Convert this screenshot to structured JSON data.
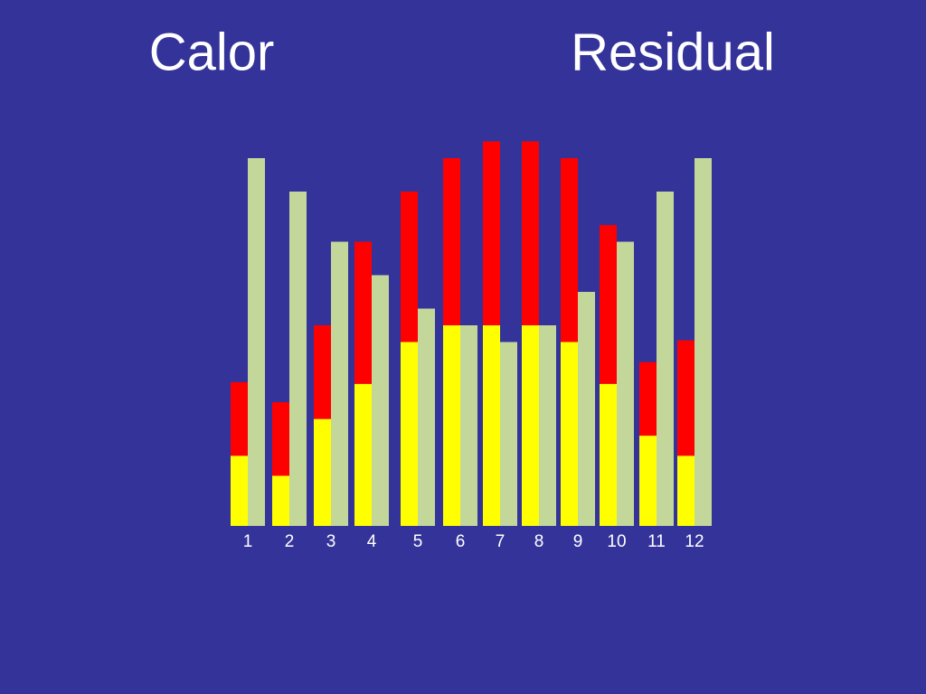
{
  "chart_data": {
    "type": "stacked-bar",
    "title_parts": [
      "Calor",
      "Residual"
    ],
    "categories": [
      "1",
      "2",
      "3",
      "4",
      "5",
      "6",
      "7",
      "8",
      "9",
      "10",
      "11",
      "12"
    ],
    "series": [
      {
        "color": "#ffff00",
        "stack": "a",
        "values": [
          4.2,
          3.0,
          6.4,
          8.5,
          11.0,
          12.0,
          12.0,
          12.0,
          11.0,
          8.5,
          5.4,
          4.2
        ]
      },
      {
        "color": "#ff0000",
        "stack": "a",
        "values": [
          4.4,
          4.4,
          5.6,
          8.5,
          9.0,
          10.0,
          11.0,
          11.0,
          11.0,
          9.5,
          4.4,
          6.9
        ]
      },
      {
        "color": "#c4d79b",
        "stack": "b",
        "values": [
          22.0,
          20.0,
          17.0,
          15.0,
          13.0,
          12.0,
          11.0,
          12.0,
          14.0,
          17.0,
          20.0,
          22.0
        ]
      }
    ],
    "ylim": [
      0,
      23
    ]
  }
}
